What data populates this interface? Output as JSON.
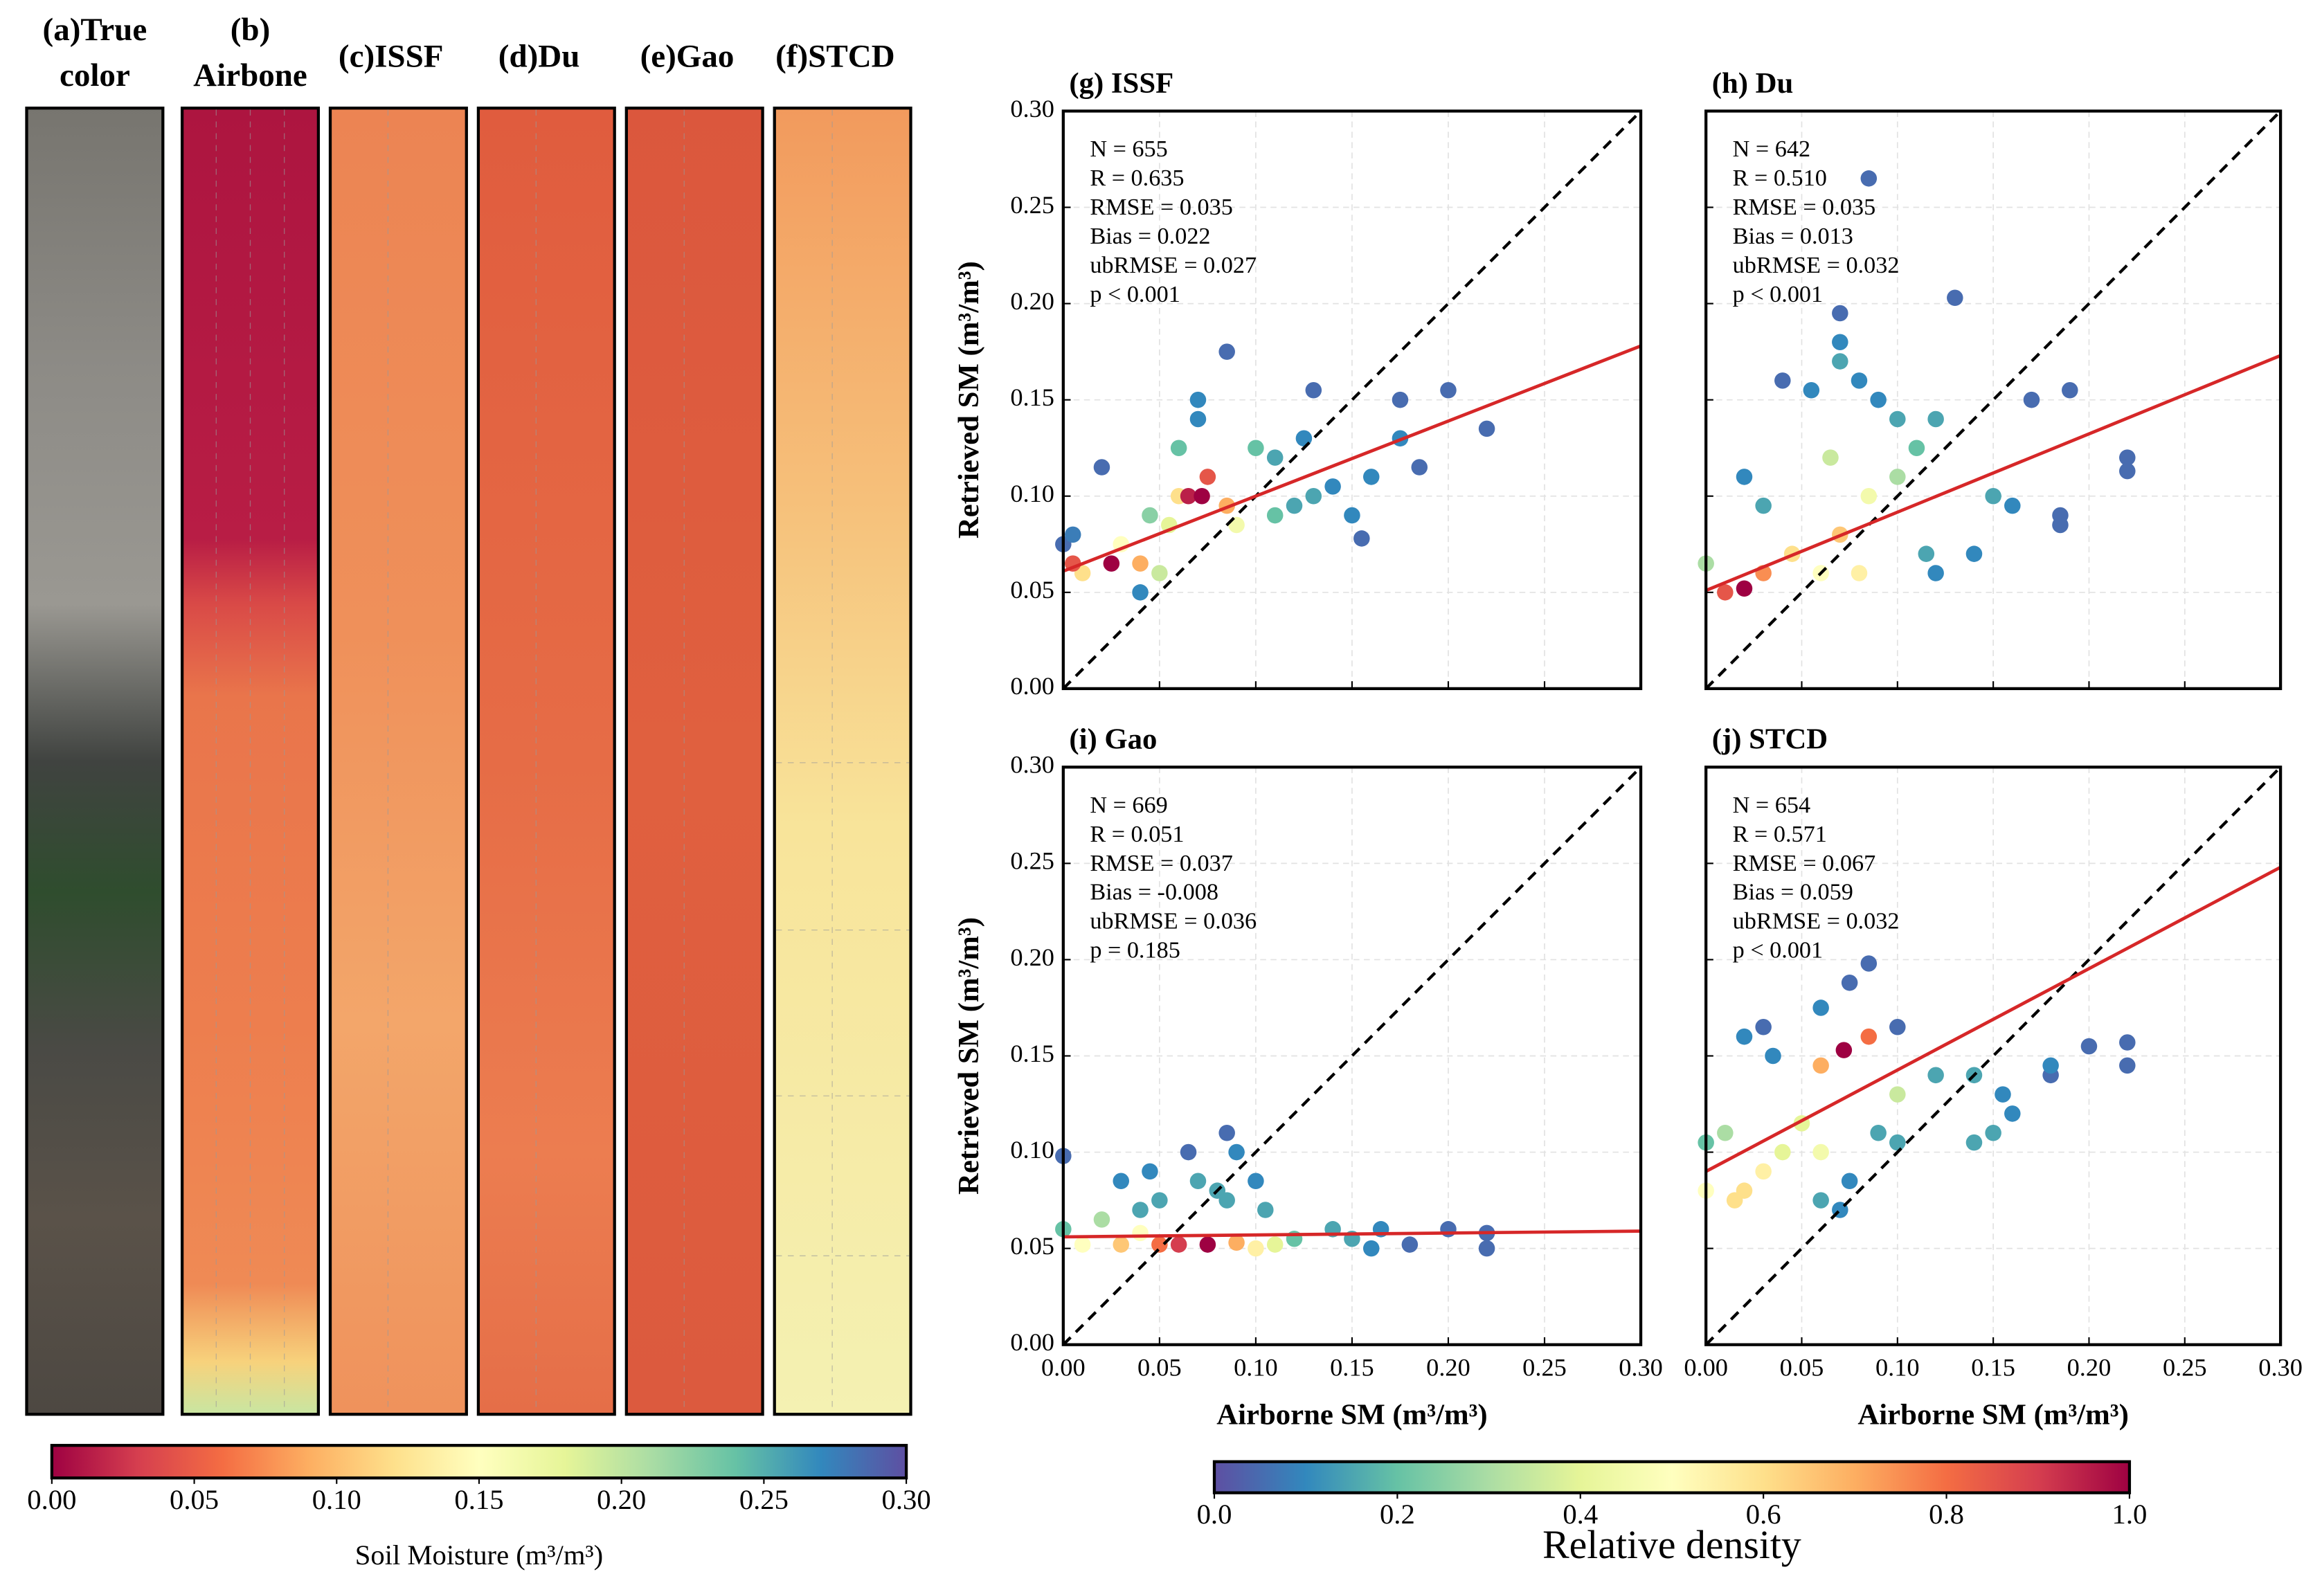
{
  "chart_data": [
    {
      "type": "heatmap",
      "panels": [
        {
          "title": [
            "(a)True",
            "color"
          ]
        },
        {
          "title": [
            "(b)",
            "Airbone"
          ]
        },
        {
          "title": [
            "(c)ISSF"
          ]
        },
        {
          "title": [
            "(d)Du"
          ]
        },
        {
          "title": [
            "(e)Gao"
          ]
        },
        {
          "title": [
            "(f)STCD"
          ]
        }
      ],
      "colorbar": {
        "label": "Soil Moisture (m³/m³)",
        "lim": [
          0,
          0.3
        ],
        "colormap": "Spectral",
        "ticks": [
          {
            "value": 0,
            "label": "0.00"
          },
          0.05,
          {
            "value": 0.1,
            "label": "0.10"
          },
          0.15,
          {
            "value": 0.2,
            "label": "0.20"
          },
          0.25,
          {
            "value": 0.3,
            "label": "0.30"
          }
        ]
      }
    },
    {
      "type": "scatter",
      "title": "(g) ISSF",
      "stats": [
        "N = 655",
        "R = 0.635",
        "RMSE = 0.035",
        "Bias = 0.022",
        "ubRMSE = 0.027",
        "p < 0.001"
      ],
      "x": [
        0,
        0.02,
        0.085,
        0.13,
        0.155,
        0.175,
        0.185,
        0.2,
        0.22,
        0.005,
        0.04,
        0.07,
        0.07,
        0.125,
        0.15,
        0.16,
        0.175,
        0.14,
        0.11,
        0.12,
        0.13,
        0.06,
        0.1,
        0.11,
        0.045,
        0.05,
        0.055,
        0.09,
        0.03,
        0.01,
        0.06,
        0.085,
        0.04,
        0.075,
        0.005,
        0.065,
        0.025,
        0.072
      ],
      "y": [
        0.075,
        0.115,
        0.175,
        0.155,
        0.078,
        0.15,
        0.115,
        0.155,
        0.135,
        0.08,
        0.05,
        0.15,
        0.14,
        0.13,
        0.09,
        0.11,
        0.13,
        0.105,
        0.12,
        0.095,
        0.1,
        0.125,
        0.125,
        0.09,
        0.09,
        0.06,
        0.085,
        0.085,
        0.075,
        0.06,
        0.1,
        0.095,
        0.065,
        0.11,
        0.065,
        0.1,
        0.065,
        0.1
      ],
      "density": [
        0.05,
        0.05,
        0.05,
        0.05,
        0.05,
        0.05,
        0.05,
        0.05,
        0.05,
        0.08,
        0.1,
        0.1,
        0.1,
        0.1,
        0.1,
        0.1,
        0.1,
        0.1,
        0.15,
        0.15,
        0.15,
        0.2,
        0.2,
        0.2,
        0.25,
        0.35,
        0.4,
        0.45,
        0.5,
        0.6,
        0.6,
        0.7,
        0.7,
        0.85,
        0.85,
        0.95,
        1,
        1
      ],
      "fit": {
        "x": [
          0,
          0.3
        ],
        "y": [
          0.061,
          0.178
        ]
      },
      "xlim": [
        0,
        0.3
      ],
      "ylim": [
        0,
        0.3
      ],
      "grid": true,
      "xtick_labels": false,
      "ytick_labels": true,
      "xticks": [
        0,
        0.05,
        0.1,
        0.15,
        0.2,
        0.25,
        0.3
      ],
      "yticks": [
        {
          "value": 0,
          "label": "0.00"
        },
        0.05,
        {
          "value": 0.1,
          "label": "0.10"
        },
        0.15,
        {
          "value": 0.2,
          "label": "0.20"
        },
        0.25,
        {
          "value": 0.3,
          "label": "0.30"
        }
      ],
      "ylabel": "Retrieved SM (m³/m³)"
    },
    {
      "type": "scatter",
      "title": "(h) Du",
      "stats": [
        "N = 642",
        "R = 0.510",
        "RMSE = 0.035",
        "Bias = 0.013",
        "ubRMSE = 0.032",
        "p < 0.001"
      ],
      "x": [
        0.085,
        0.13,
        0.07,
        0.04,
        0.17,
        0.19,
        0.22,
        0.22,
        0.185,
        0.185,
        0.07,
        0.055,
        0.08,
        0.09,
        0.12,
        0.14,
        0.02,
        0.16,
        0.07,
        0.1,
        0.12,
        0.15,
        0.115,
        0.03,
        0.11,
        0,
        0.1,
        0.065,
        0.085,
        0.06,
        0.08,
        0.045,
        0.07,
        0.03,
        0.01,
        0.02
      ],
      "y": [
        0.265,
        0.203,
        0.195,
        0.16,
        0.15,
        0.155,
        0.12,
        0.113,
        0.09,
        0.085,
        0.18,
        0.155,
        0.16,
        0.15,
        0.06,
        0.07,
        0.11,
        0.095,
        0.17,
        0.14,
        0.14,
        0.1,
        0.07,
        0.095,
        0.125,
        0.065,
        0.11,
        0.12,
        0.1,
        0.06,
        0.06,
        0.07,
        0.08,
        0.06,
        0.05,
        0.052
      ],
      "density": [
        0.05,
        0.05,
        0.05,
        0.05,
        0.05,
        0.05,
        0.05,
        0.05,
        0.05,
        0.05,
        0.1,
        0.1,
        0.1,
        0.1,
        0.1,
        0.1,
        0.1,
        0.1,
        0.15,
        0.15,
        0.15,
        0.15,
        0.15,
        0.15,
        0.2,
        0.3,
        0.3,
        0.35,
        0.45,
        0.5,
        0.55,
        0.6,
        0.65,
        0.75,
        0.85,
        1
      ],
      "fit": {
        "x": [
          0,
          0.3
        ],
        "y": [
          0.051,
          0.173
        ]
      },
      "xlim": [
        0,
        0.3
      ],
      "ylim": [
        0,
        0.3
      ],
      "grid": true,
      "xtick_labels": false,
      "ytick_labels": false,
      "xticks": [
        0,
        0.05,
        0.1,
        0.15,
        0.2,
        0.25,
        0.3
      ],
      "yticks": [
        0,
        0.05,
        0.1,
        0.15,
        0.2,
        0.25,
        0.3
      ]
    },
    {
      "type": "scatter",
      "title": "(i) Gao",
      "stats": [
        "N = 669",
        "R = 0.051",
        "RMSE = 0.037",
        "Bias = -0.008",
        "ubRMSE = 0.036",
        "p = 0.185"
      ],
      "x": [
        0,
        0.065,
        0.085,
        0.2,
        0.22,
        0.22,
        0.18,
        0.03,
        0.045,
        0.09,
        0.1,
        0.165,
        0.16,
        0.07,
        0.08,
        0.085,
        0.105,
        0.05,
        0.04,
        0.14,
        0.15,
        0.12,
        0,
        0.02,
        0.11,
        0.01,
        0.04,
        0.1,
        0.03,
        0.09,
        0.05,
        0.06,
        0.075
      ],
      "y": [
        0.098,
        0.1,
        0.11,
        0.06,
        0.05,
        0.058,
        0.052,
        0.085,
        0.09,
        0.1,
        0.085,
        0.06,
        0.05,
        0.085,
        0.08,
        0.075,
        0.07,
        0.075,
        0.07,
        0.06,
        0.055,
        0.055,
        0.06,
        0.065,
        0.052,
        0.052,
        0.058,
        0.05,
        0.052,
        0.053,
        0.052,
        0.052,
        0.052
      ],
      "density": [
        0.05,
        0.05,
        0.05,
        0.05,
        0.05,
        0.05,
        0.05,
        0.1,
        0.1,
        0.1,
        0.1,
        0.1,
        0.1,
        0.15,
        0.15,
        0.15,
        0.15,
        0.15,
        0.15,
        0.15,
        0.15,
        0.2,
        0.2,
        0.3,
        0.4,
        0.5,
        0.5,
        0.55,
        0.65,
        0.7,
        0.8,
        0.9,
        1
      ],
      "fit": {
        "x": [
          0,
          0.3
        ],
        "y": [
          0.056,
          0.059
        ]
      },
      "xlim": [
        0,
        0.3
      ],
      "ylim": [
        0,
        0.3
      ],
      "grid": true,
      "xtick_labels": true,
      "ytick_labels": true,
      "xticks": [
        {
          "value": 0,
          "label": "0.00"
        },
        0.05,
        {
          "value": 0.1,
          "label": "0.10"
        },
        0.15,
        {
          "value": 0.2,
          "label": "0.20"
        },
        0.25,
        {
          "value": 0.3,
          "label": "0.30"
        }
      ],
      "yticks": [
        {
          "value": 0,
          "label": "0.00"
        },
        0.05,
        {
          "value": 0.1,
          "label": "0.10"
        },
        0.15,
        {
          "value": 0.2,
          "label": "0.20"
        },
        0.25,
        {
          "value": 0.3,
          "label": "0.30"
        }
      ],
      "xlabel": "Airborne SM (m³/m³)",
      "ylabel": "Retrieved SM (m³/m³)"
    },
    {
      "type": "scatter",
      "title": "(j) STCD",
      "stats": [
        "N = 654",
        "R = 0.571",
        "RMSE = 0.067",
        "Bias = 0.059",
        "ubRMSE = 0.032",
        "p < 0.001"
      ],
      "x": [
        0.085,
        0.075,
        0.03,
        0.2,
        0.22,
        0.22,
        0.18,
        0.1,
        0.06,
        0.035,
        0.02,
        0.18,
        0.16,
        0.155,
        0.075,
        0.07,
        0.15,
        0.14,
        0.14,
        0.12,
        0.09,
        0.1,
        0.06,
        0,
        0.01,
        0.1,
        0.04,
        0.05,
        0.06,
        0,
        0.03,
        0.015,
        0.02,
        0.06,
        0.085,
        0.072
      ],
      "y": [
        0.198,
        0.188,
        0.165,
        0.155,
        0.157,
        0.145,
        0.14,
        0.165,
        0.175,
        0.15,
        0.16,
        0.145,
        0.12,
        0.13,
        0.085,
        0.07,
        0.11,
        0.105,
        0.14,
        0.14,
        0.11,
        0.105,
        0.075,
        0.105,
        0.11,
        0.13,
        0.1,
        0.115,
        0.1,
        0.08,
        0.09,
        0.075,
        0.08,
        0.145,
        0.16,
        0.153
      ],
      "density": [
        0.05,
        0.05,
        0.05,
        0.05,
        0.05,
        0.05,
        0.05,
        0.05,
        0.1,
        0.1,
        0.1,
        0.1,
        0.1,
        0.1,
        0.1,
        0.1,
        0.15,
        0.15,
        0.15,
        0.15,
        0.15,
        0.15,
        0.15,
        0.2,
        0.3,
        0.35,
        0.4,
        0.4,
        0.45,
        0.5,
        0.55,
        0.6,
        0.6,
        0.7,
        0.8,
        1
      ],
      "fit": {
        "x": [
          0,
          0.3
        ],
        "y": [
          0.09,
          0.248
        ]
      },
      "xlim": [
        0,
        0.3
      ],
      "ylim": [
        0,
        0.3
      ],
      "grid": true,
      "xtick_labels": true,
      "ytick_labels": false,
      "xticks": [
        {
          "value": 0,
          "label": "0.00"
        },
        0.05,
        {
          "value": 0.1,
          "label": "0.10"
        },
        0.15,
        {
          "value": 0.2,
          "label": "0.20"
        },
        0.25,
        {
          "value": 0.3,
          "label": "0.30"
        }
      ],
      "yticks": [
        0,
        0.05,
        0.1,
        0.15,
        0.2,
        0.25,
        0.3
      ],
      "xlabel": "Airborne SM (m³/m³)"
    },
    {
      "type": "colorbar",
      "label": "Relative density",
      "lim": [
        0,
        1
      ],
      "colormap": "Spectral_r",
      "ticks": [
        {
          "value": 0,
          "label": "0.0"
        },
        0.2,
        0.4,
        0.6,
        0.8,
        {
          "value": 1,
          "label": "1.0"
        }
      ]
    }
  ]
}
